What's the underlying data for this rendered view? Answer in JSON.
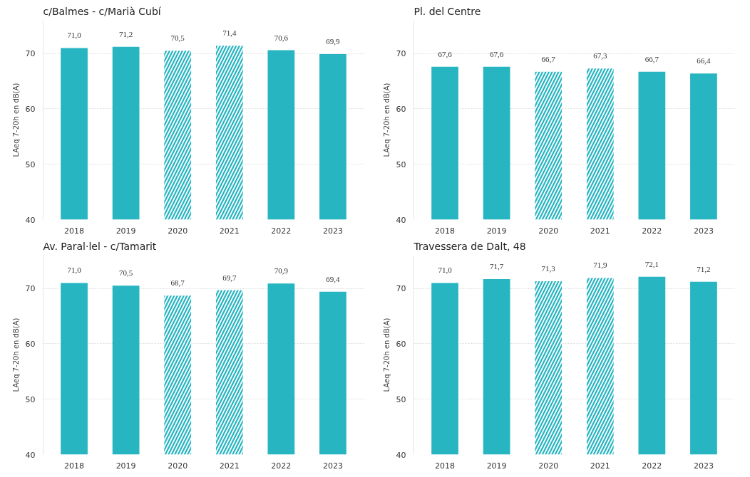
{
  "chart_data": [
    {
      "type": "bar",
      "title": "c/Balmes - c/Marià Cubí",
      "ylabel": "LAeq 7-20h en dB(A)",
      "categories": [
        "2018",
        "2019",
        "2020",
        "2021",
        "2022",
        "2023"
      ],
      "series": [
        {
          "color": "#26b5c1",
          "values": [
            71.0,
            71.2,
            null,
            null,
            70.6,
            69.9
          ],
          "value_labels": [
            "71,0",
            "71,2",
            null,
            null,
            "70,6",
            "69,9"
          ]
        },
        {
          "color": "#26b5c1",
          "values": [
            null,
            null,
            70.5,
            71.4,
            null,
            null
          ],
          "value_labels": [
            null,
            null,
            "70,5",
            "71,4",
            null,
            null
          ]
        }
      ],
      "ylim": [
        40,
        76
      ],
      "yticks": [
        40,
        50,
        60,
        70
      ],
      "grid": "y"
    },
    {
      "type": "bar",
      "title": "Pl. del Centre",
      "ylabel": "LAeq 7-20h en dB(A)",
      "categories": [
        "2018",
        "2019",
        "2020",
        "2021",
        "2022",
        "2023"
      ],
      "series": [
        {
          "color": "#26b5c1",
          "values": [
            67.6,
            67.6,
            null,
            null,
            66.7,
            66.4
          ],
          "value_labels": [
            "67,6",
            "67,6",
            null,
            null,
            "66,7",
            "66,4"
          ]
        },
        {
          "color": "#26b5c1",
          "values": [
            null,
            null,
            66.7,
            67.3,
            null,
            null
          ],
          "value_labels": [
            null,
            null,
            "66,7",
            "67,3",
            null,
            null
          ]
        }
      ],
      "ylim": [
        40,
        76
      ],
      "yticks": [
        40,
        50,
        60,
        70
      ],
      "grid": "y"
    },
    {
      "type": "bar",
      "title": "Av. Paral·lel - c/Tamarit",
      "ylabel": "LAeq 7-20h en dB(A)",
      "categories": [
        "2018",
        "2019",
        "2020",
        "2021",
        "2022",
        "2023"
      ],
      "series": [
        {
          "color": "#26b5c1",
          "values": [
            71.0,
            70.5,
            null,
            null,
            70.9,
            69.4
          ],
          "value_labels": [
            "71,0",
            "70,5",
            null,
            null,
            "70,9",
            "69,4"
          ]
        },
        {
          "color": "#26b5c1",
          "values": [
            null,
            null,
            68.7,
            69.7,
            null,
            null
          ],
          "value_labels": [
            null,
            null,
            "68,7",
            "69,7",
            null,
            null
          ]
        }
      ],
      "ylim": [
        40,
        76
      ],
      "yticks": [
        40,
        50,
        60,
        70
      ],
      "grid": "y"
    },
    {
      "type": "bar",
      "title": "Travessera de Dalt, 48",
      "ylabel": "LAeq 7-20h en dB(A)",
      "categories": [
        "2018",
        "2019",
        "2020",
        "2021",
        "2022",
        "2023"
      ],
      "series": [
        {
          "color": "#26b5c1",
          "values": [
            71.0,
            71.7,
            null,
            null,
            72.1,
            71.2
          ],
          "value_labels": [
            "71,0",
            "71,7",
            null,
            null,
            "72,1",
            "71,2"
          ]
        },
        {
          "color": "#26b5c1",
          "values": [
            null,
            null,
            71.3,
            71.9,
            null,
            null
          ],
          "value_labels": [
            null,
            null,
            "71,3",
            "71,9",
            null,
            null
          ]
        }
      ],
      "ylim": [
        40,
        76
      ],
      "yticks": [
        40,
        50,
        60,
        70
      ],
      "grid": "y"
    }
  ]
}
